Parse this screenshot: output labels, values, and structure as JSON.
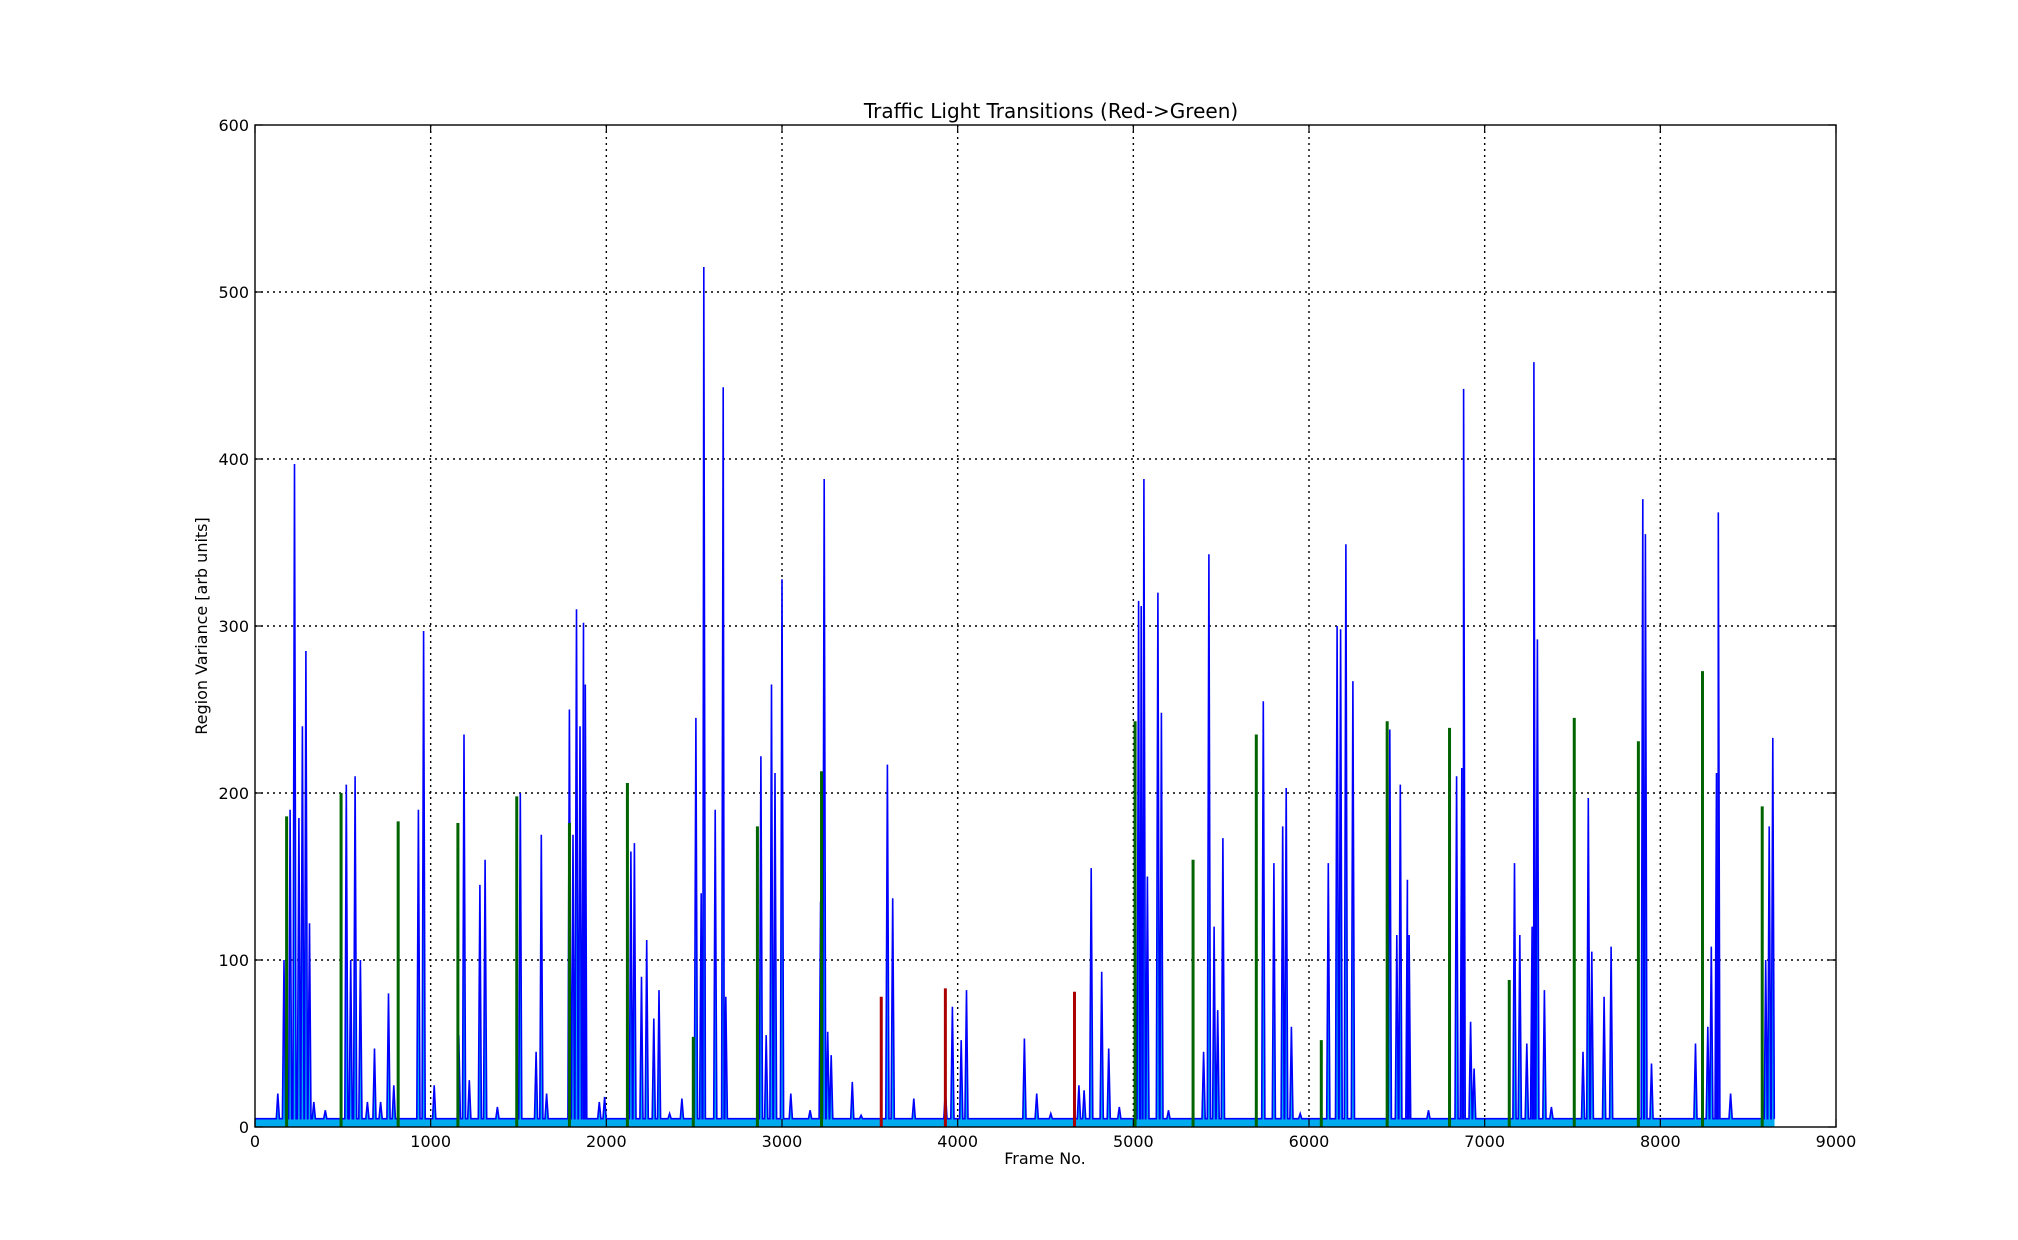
{
  "chart_data": {
    "type": "line",
    "title": "Traffic Light Transitions (Red->Green)",
    "xlabel": "Frame No.",
    "ylabel": "Region Variance [arb units]",
    "xlim": [
      0,
      9000
    ],
    "ylim": [
      0,
      600
    ],
    "xticks": [
      0,
      1000,
      2000,
      3000,
      4000,
      5000,
      6000,
      7000,
      8000,
      9000
    ],
    "yticks": [
      0,
      100,
      200,
      300,
      400,
      500,
      600
    ],
    "grid": true,
    "baseline": 5,
    "colors": {
      "variance_line": "#0000ff",
      "variance_fill": "#00aaee",
      "green_transition": "#006400",
      "red_transition": "#aa0000"
    },
    "series": [
      {
        "kind": "variance",
        "peaks": [
          [
            130,
            20
          ],
          [
            165,
            100
          ],
          [
            200,
            190
          ],
          [
            225,
            397
          ],
          [
            250,
            185
          ],
          [
            270,
            240
          ],
          [
            290,
            285
          ],
          [
            310,
            122
          ],
          [
            335,
            15
          ],
          [
            400,
            10
          ],
          [
            520,
            205
          ],
          [
            545,
            100
          ],
          [
            570,
            210
          ],
          [
            600,
            100
          ],
          [
            640,
            15
          ],
          [
            680,
            47
          ],
          [
            715,
            15
          ],
          [
            760,
            80
          ],
          [
            790,
            25
          ],
          [
            930,
            190
          ],
          [
            960,
            297
          ],
          [
            1020,
            25
          ],
          [
            1160,
            55
          ],
          [
            1190,
            235
          ],
          [
            1220,
            28
          ],
          [
            1280,
            145
          ],
          [
            1310,
            160
          ],
          [
            1380,
            12
          ],
          [
            1510,
            200
          ],
          [
            1600,
            45
          ],
          [
            1630,
            175
          ],
          [
            1660,
            20
          ],
          [
            1790,
            250
          ],
          [
            1810,
            175
          ],
          [
            1830,
            310
          ],
          [
            1850,
            240
          ],
          [
            1870,
            302
          ],
          [
            1880,
            265
          ],
          [
            1960,
            15
          ],
          [
            1990,
            18
          ],
          [
            2140,
            165
          ],
          [
            2160,
            170
          ],
          [
            2200,
            90
          ],
          [
            2230,
            112
          ],
          [
            2270,
            65
          ],
          [
            2300,
            82
          ],
          [
            2360,
            8
          ],
          [
            2430,
            17
          ],
          [
            2510,
            245
          ],
          [
            2540,
            140
          ],
          [
            2555,
            515
          ],
          [
            2620,
            190
          ],
          [
            2665,
            443
          ],
          [
            2680,
            78
          ],
          [
            2880,
            222
          ],
          [
            2910,
            55
          ],
          [
            2940,
            265
          ],
          [
            2960,
            212
          ],
          [
            3000,
            328
          ],
          [
            3050,
            20
          ],
          [
            3160,
            10
          ],
          [
            3220,
            135
          ],
          [
            3240,
            388
          ],
          [
            3260,
            57
          ],
          [
            3280,
            43
          ],
          [
            3400,
            27
          ],
          [
            3450,
            7
          ],
          [
            3600,
            217
          ],
          [
            3630,
            137
          ],
          [
            3750,
            17
          ],
          [
            3930,
            22
          ],
          [
            3970,
            72
          ],
          [
            4020,
            52
          ],
          [
            4050,
            82
          ],
          [
            4380,
            53
          ],
          [
            4450,
            20
          ],
          [
            4530,
            8
          ],
          [
            4690,
            25
          ],
          [
            4720,
            22
          ],
          [
            4760,
            155
          ],
          [
            4820,
            93
          ],
          [
            4860,
            47
          ],
          [
            4920,
            12
          ],
          [
            5030,
            315
          ],
          [
            5045,
            312
          ],
          [
            5060,
            388
          ],
          [
            5080,
            150
          ],
          [
            5140,
            320
          ],
          [
            5160,
            248
          ],
          [
            5200,
            10
          ],
          [
            5400,
            45
          ],
          [
            5430,
            343
          ],
          [
            5460,
            120
          ],
          [
            5480,
            70
          ],
          [
            5510,
            173
          ],
          [
            5740,
            255
          ],
          [
            5800,
            158
          ],
          [
            5850,
            180
          ],
          [
            5870,
            203
          ],
          [
            5900,
            60
          ],
          [
            5950,
            8
          ],
          [
            6110,
            158
          ],
          [
            6160,
            300
          ],
          [
            6180,
            298
          ],
          [
            6210,
            349
          ],
          [
            6250,
            267
          ],
          [
            6460,
            238
          ],
          [
            6500,
            115
          ],
          [
            6520,
            205
          ],
          [
            6560,
            148
          ],
          [
            6570,
            115
          ],
          [
            6680,
            10
          ],
          [
            6840,
            210
          ],
          [
            6870,
            215
          ],
          [
            6880,
            442
          ],
          [
            6920,
            63
          ],
          [
            6940,
            35
          ],
          [
            7170,
            158
          ],
          [
            7200,
            115
          ],
          [
            7240,
            50
          ],
          [
            7270,
            120
          ],
          [
            7280,
            458
          ],
          [
            7300,
            292
          ],
          [
            7340,
            82
          ],
          [
            7380,
            12
          ],
          [
            7560,
            45
          ],
          [
            7590,
            197
          ],
          [
            7610,
            105
          ],
          [
            7680,
            78
          ],
          [
            7720,
            108
          ],
          [
            7900,
            376
          ],
          [
            7915,
            355
          ],
          [
            7950,
            38
          ],
          [
            8200,
            50
          ],
          [
            8270,
            60
          ],
          [
            8290,
            108
          ],
          [
            8320,
            212
          ],
          [
            8330,
            368
          ],
          [
            8400,
            20
          ],
          [
            8600,
            100
          ],
          [
            8620,
            180
          ],
          [
            8640,
            233
          ]
        ]
      },
      {
        "kind": "green_transitions",
        "frames": [
          180,
          490,
          815,
          1155,
          1490,
          1790,
          2120,
          2495,
          2860,
          3225,
          5010,
          5340,
          5700,
          6070,
          6445,
          6800,
          7140,
          7510,
          7875,
          8240,
          8580
        ],
        "values": [
          186,
          200,
          183,
          182,
          198,
          182,
          206,
          54,
          180,
          213,
          243,
          160,
          235,
          52,
          243,
          239,
          88,
          245,
          231,
          273,
          192
        ]
      },
      {
        "kind": "red_transitions",
        "frames": [
          3565,
          3930,
          4665
        ],
        "values": [
          78,
          83,
          81
        ]
      }
    ]
  }
}
